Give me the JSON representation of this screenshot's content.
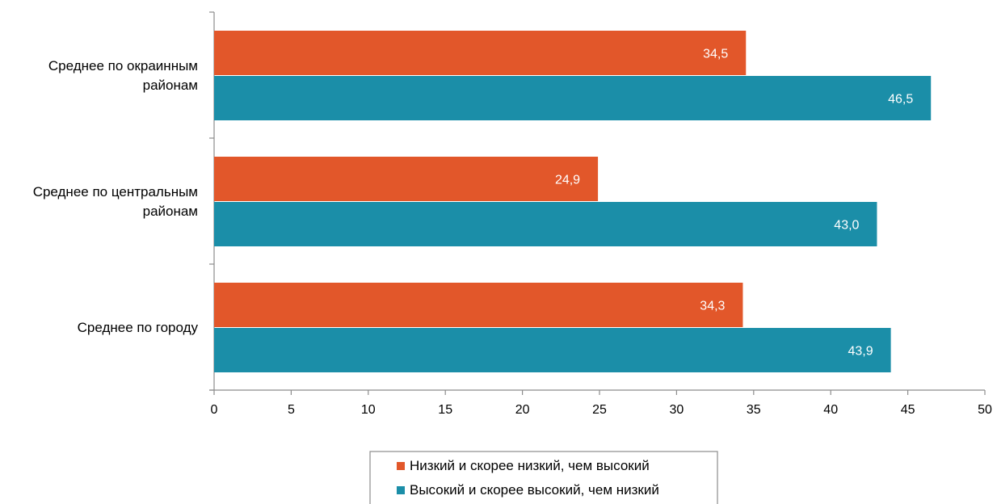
{
  "chart_data": {
    "type": "bar",
    "orientation": "horizontal",
    "categories": [
      [
        "Среднее по окраинным",
        "районам"
      ],
      [
        "Среднее по центральным",
        "районам"
      ],
      [
        "Среднее по городу"
      ]
    ],
    "series": [
      {
        "name": "Низкий и скорее низкий, чем высокий",
        "color": "#e2572a",
        "values": [
          34.5,
          24.9,
          34.3
        ],
        "labels": [
          "34,5",
          "24,9",
          "34,3"
        ]
      },
      {
        "name": "Высокий и скорее высокий, чем низкий",
        "color": "#1b8ea8",
        "values": [
          46.5,
          43.0,
          43.9
        ],
        "labels": [
          "46,5",
          "43,0",
          "43,9"
        ]
      }
    ],
    "xlim": [
      0,
      50
    ],
    "xticks": [
      0,
      5,
      10,
      15,
      20,
      25,
      30,
      35,
      40,
      45,
      50
    ],
    "grid": false,
    "legend_position": "bottom"
  }
}
